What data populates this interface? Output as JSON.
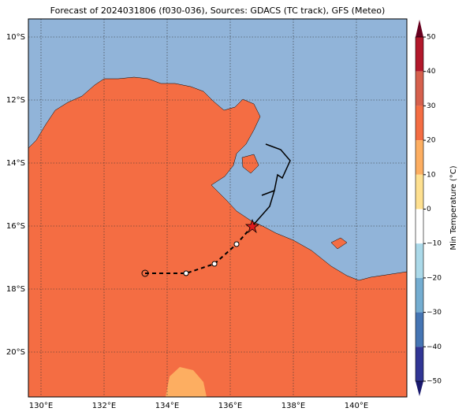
{
  "title": "Forecast of 2024031806 (f030-036), Sources: GDACS (TC track), GFS (Meteo)",
  "map": {
    "lat_labels": [
      "10°S",
      "12°S",
      "14°S",
      "16°S",
      "18°S",
      "20°S"
    ],
    "lon_labels": [
      "130°E",
      "132°E",
      "134°E",
      "136°E",
      "138°E",
      "140°E"
    ]
  },
  "colorbar": {
    "label": "Min Temperature (°C)",
    "ticks": [
      "50",
      "40",
      "30",
      "20",
      "10",
      "0",
      "−10",
      "−20",
      "−30",
      "−40",
      "−50"
    ]
  }
}
